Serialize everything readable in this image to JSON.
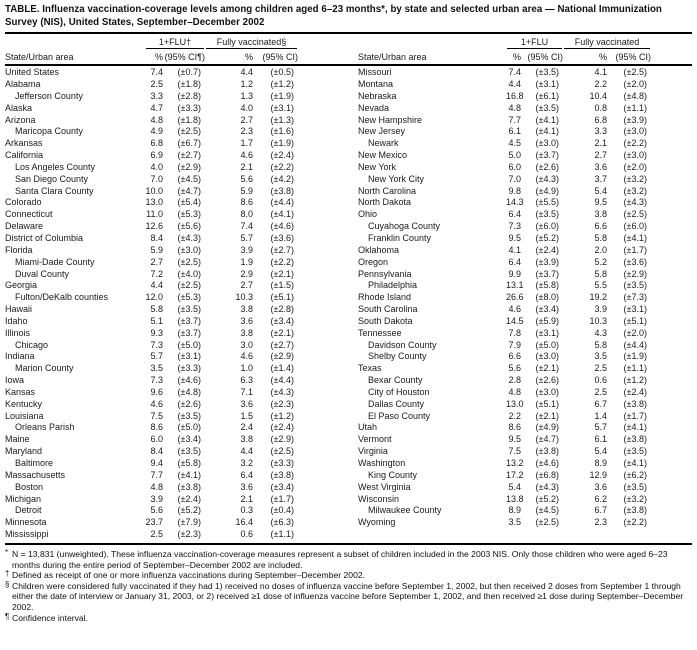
{
  "title": "TABLE. Influenza vaccination-coverage levels among children aged 6–23 months*, by state and selected urban area — National Immunization Survey (NIS), United States, September–December 2002",
  "left_table": {
    "group_flu": "1+FLU†",
    "group_fully": "Fully vaccinated§",
    "col_state": "State/Urban area",
    "col_pct": "%",
    "col_ci_flu": "(95% CI¶)",
    "col_ci_fully": "(95% CI)"
  },
  "right_table": {
    "group_flu": "1+FLU",
    "group_fully": "Fully vaccinated",
    "col_state": "State/Urban area",
    "col_pct": "%",
    "col_ci_flu": "(95% CI)",
    "col_ci_fully": "(95% CI)"
  },
  "left_rows": [
    {
      "area": "United States",
      "indent": false,
      "flu_pct": "7.4",
      "flu_ci": "(±0.7)",
      "full_pct": "4.4",
      "full_ci": "(±0.5)"
    },
    {
      "area": "Alabama",
      "indent": false,
      "flu_pct": "2.5",
      "flu_ci": "(±1.8)",
      "full_pct": "1.2",
      "full_ci": "(±1.2)"
    },
    {
      "area": "Jefferson County",
      "indent": true,
      "flu_pct": "3.3",
      "flu_ci": "(±2.8)",
      "full_pct": "1.3",
      "full_ci": "(±1.9)"
    },
    {
      "area": "Alaska",
      "indent": false,
      "flu_pct": "4.7",
      "flu_ci": "(±3.3)",
      "full_pct": "4.0",
      "full_ci": "(±3.1)"
    },
    {
      "area": "Arizona",
      "indent": false,
      "flu_pct": "4.8",
      "flu_ci": "(±1.8)",
      "full_pct": "2.7",
      "full_ci": "(±1.3)"
    },
    {
      "area": "Maricopa County",
      "indent": true,
      "flu_pct": "4.9",
      "flu_ci": "(±2.5)",
      "full_pct": "2.3",
      "full_ci": "(±1.6)"
    },
    {
      "area": "Arkansas",
      "indent": false,
      "flu_pct": "6.8",
      "flu_ci": "(±6.7)",
      "full_pct": "1.7",
      "full_ci": "(±1.9)"
    },
    {
      "area": "California",
      "indent": false,
      "flu_pct": "6.9",
      "flu_ci": "(±2.7)",
      "full_pct": "4.6",
      "full_ci": "(±2.4)"
    },
    {
      "area": "Los Angeles County",
      "indent": true,
      "flu_pct": "4.0",
      "flu_ci": "(±2.9)",
      "full_pct": "2.1",
      "full_ci": "(±2.2)"
    },
    {
      "area": "San Diego County",
      "indent": true,
      "flu_pct": "7.0",
      "flu_ci": "(±4.5)",
      "full_pct": "5.6",
      "full_ci": "(±4.2)"
    },
    {
      "area": "Santa Clara County",
      "indent": true,
      "flu_pct": "10.0",
      "flu_ci": "(±4.7)",
      "full_pct": "5.9",
      "full_ci": "(±3.8)"
    },
    {
      "area": "Colorado",
      "indent": false,
      "flu_pct": "13.0",
      "flu_ci": "(±5.4)",
      "full_pct": "8.6",
      "full_ci": "(±4.4)"
    },
    {
      "area": "Connecticut",
      "indent": false,
      "flu_pct": "11.0",
      "flu_ci": "(±5.3)",
      "full_pct": "8.0",
      "full_ci": "(±4.1)"
    },
    {
      "area": "Delaware",
      "indent": false,
      "flu_pct": "12.6",
      "flu_ci": "(±5.6)",
      "full_pct": "7.4",
      "full_ci": "(±4.6)"
    },
    {
      "area": "District of Columbia",
      "indent": false,
      "flu_pct": "8.4",
      "flu_ci": "(±4.3)",
      "full_pct": "5.7",
      "full_ci": "(±3.6)"
    },
    {
      "area": "Florida",
      "indent": false,
      "flu_pct": "5.9",
      "flu_ci": "(±3.0)",
      "full_pct": "3.9",
      "full_ci": "(±2.7)"
    },
    {
      "area": "Miami-Dade County",
      "indent": true,
      "flu_pct": "2.7",
      "flu_ci": "(±2.5)",
      "full_pct": "1.9",
      "full_ci": "(±2.2)"
    },
    {
      "area": "Duval County",
      "indent": true,
      "flu_pct": "7.2",
      "flu_ci": "(±4.0)",
      "full_pct": "2.9",
      "full_ci": "(±2.1)"
    },
    {
      "area": "Georgia",
      "indent": false,
      "flu_pct": "4.4",
      "flu_ci": "(±2.5)",
      "full_pct": "2.7",
      "full_ci": "(±1.5)"
    },
    {
      "area": "Fulton/DeKalb counties",
      "indent": true,
      "flu_pct": "12.0",
      "flu_ci": "(±5.3)",
      "full_pct": "10.3",
      "full_ci": "(±5.1)"
    },
    {
      "area": "Hawaii",
      "indent": false,
      "flu_pct": "5.8",
      "flu_ci": "(±3.5)",
      "full_pct": "3.8",
      "full_ci": "(±2.8)"
    },
    {
      "area": "Idaho",
      "indent": false,
      "flu_pct": "5.1",
      "flu_ci": "(±3.7)",
      "full_pct": "3.6",
      "full_ci": "(±3.4)"
    },
    {
      "area": "Illinois",
      "indent": false,
      "flu_pct": "9.3",
      "flu_ci": "(±3.7)",
      "full_pct": "3.8",
      "full_ci": "(±2.1)"
    },
    {
      "area": "Chicago",
      "indent": true,
      "flu_pct": "7.3",
      "flu_ci": "(±5.0)",
      "full_pct": "3.0",
      "full_ci": "(±2.7)"
    },
    {
      "area": "Indiana",
      "indent": false,
      "flu_pct": "5.7",
      "flu_ci": "(±3.1)",
      "full_pct": "4.6",
      "full_ci": "(±2.9)"
    },
    {
      "area": "Marion County",
      "indent": true,
      "flu_pct": "3.5",
      "flu_ci": "(±3.3)",
      "full_pct": "1.0",
      "full_ci": "(±1.4)"
    },
    {
      "area": "Iowa",
      "indent": false,
      "flu_pct": "7.3",
      "flu_ci": "(±4.6)",
      "full_pct": "6.3",
      "full_ci": "(±4.4)"
    },
    {
      "area": "Kansas",
      "indent": false,
      "flu_pct": "9.6",
      "flu_ci": "(±4.8)",
      "full_pct": "7.1",
      "full_ci": "(±4.3)"
    },
    {
      "area": "Kentucky",
      "indent": false,
      "flu_pct": "4.6",
      "flu_ci": "(±2.6)",
      "full_pct": "3.6",
      "full_ci": "(±2.3)"
    },
    {
      "area": "Louisiana",
      "indent": false,
      "flu_pct": "7.5",
      "flu_ci": "(±3.5)",
      "full_pct": "1.5",
      "full_ci": "(±1.2)"
    },
    {
      "area": "Orleans Parish",
      "indent": true,
      "flu_pct": "8.6",
      "flu_ci": "(±5.0)",
      "full_pct": "2.4",
      "full_ci": "(±2.4)"
    },
    {
      "area": "Maine",
      "indent": false,
      "flu_pct": "6.0",
      "flu_ci": "(±3.4)",
      "full_pct": "3.8",
      "full_ci": "(±2.9)"
    },
    {
      "area": "Maryland",
      "indent": false,
      "flu_pct": "8.4",
      "flu_ci": "(±3.5)",
      "full_pct": "4.4",
      "full_ci": "(±2.5)"
    },
    {
      "area": "Baltimore",
      "indent": true,
      "flu_pct": "9.4",
      "flu_ci": "(±5.8)",
      "full_pct": "3.2",
      "full_ci": "(±3.3)"
    },
    {
      "area": "Massachusetts",
      "indent": false,
      "flu_pct": "7.7",
      "flu_ci": "(±4.1)",
      "full_pct": "6.4",
      "full_ci": "(±3.8)"
    },
    {
      "area": "Boston",
      "indent": true,
      "flu_pct": "4.8",
      "flu_ci": "(±3.8)",
      "full_pct": "3.6",
      "full_ci": "(±3.4)"
    },
    {
      "area": "Michigan",
      "indent": false,
      "flu_pct": "3.9",
      "flu_ci": "(±2.4)",
      "full_pct": "2.1",
      "full_ci": "(±1.7)"
    },
    {
      "area": "Detroit",
      "indent": true,
      "flu_pct": "5.6",
      "flu_ci": "(±5.2)",
      "full_pct": "0.3",
      "full_ci": "(±0.4)"
    },
    {
      "area": "Minnesota",
      "indent": false,
      "flu_pct": "23.7",
      "flu_ci": "(±7.9)",
      "full_pct": "16.4",
      "full_ci": "(±6.3)"
    },
    {
      "area": "Mississippi",
      "indent": false,
      "flu_pct": "2.5",
      "flu_ci": "(±2.3)",
      "full_pct": "0.6",
      "full_ci": "(±1.1)"
    }
  ],
  "right_rows": [
    {
      "area": "Missouri",
      "indent": false,
      "flu_pct": "7.4",
      "flu_ci": "(±3.5)",
      "full_pct": "4.1",
      "full_ci": "(±2.5)"
    },
    {
      "area": "Montana",
      "indent": false,
      "flu_pct": "4.4",
      "flu_ci": "(±3.1)",
      "full_pct": "2.2",
      "full_ci": "(±2.0)"
    },
    {
      "area": "Nebraska",
      "indent": false,
      "flu_pct": "16.8",
      "flu_ci": "(±6.1)",
      "full_pct": "10.4",
      "full_ci": "(±4.8)"
    },
    {
      "area": "Nevada",
      "indent": false,
      "flu_pct": "4.8",
      "flu_ci": "(±3.5)",
      "full_pct": "0.8",
      "full_ci": "(±1.1)"
    },
    {
      "area": "New Hampshire",
      "indent": false,
      "flu_pct": "7.7",
      "flu_ci": "(±4.1)",
      "full_pct": "6.8",
      "full_ci": "(±3.9)"
    },
    {
      "area": "New Jersey",
      "indent": false,
      "flu_pct": "6.1",
      "flu_ci": "(±4.1)",
      "full_pct": "3.3",
      "full_ci": "(±3.0)"
    },
    {
      "area": "Newark",
      "indent": true,
      "flu_pct": "4.5",
      "flu_ci": "(±3.0)",
      "full_pct": "2.1",
      "full_ci": "(±2.2)"
    },
    {
      "area": "New Mexico",
      "indent": false,
      "flu_pct": "5.0",
      "flu_ci": "(±3.7)",
      "full_pct": "2.7",
      "full_ci": "(±3.0)"
    },
    {
      "area": "New York",
      "indent": false,
      "flu_pct": "6.0",
      "flu_ci": "(±2.6)",
      "full_pct": "3.6",
      "full_ci": "(±2.0)"
    },
    {
      "area": "New York City",
      "indent": true,
      "flu_pct": "7.0",
      "flu_ci": "(±4.3)",
      "full_pct": "3.7",
      "full_ci": "(±3.2)"
    },
    {
      "area": "North Carolina",
      "indent": false,
      "flu_pct": "9.8",
      "flu_ci": "(±4.9)",
      "full_pct": "5.4",
      "full_ci": "(±3.2)"
    },
    {
      "area": "North Dakota",
      "indent": false,
      "flu_pct": "14.3",
      "flu_ci": "(±5.5)",
      "full_pct": "9.5",
      "full_ci": "(±4.3)"
    },
    {
      "area": "Ohio",
      "indent": false,
      "flu_pct": "6.4",
      "flu_ci": "(±3.5)",
      "full_pct": "3.8",
      "full_ci": "(±2.5)"
    },
    {
      "area": "Cuyahoga County",
      "indent": true,
      "flu_pct": "7.3",
      "flu_ci": "(±6.0)",
      "full_pct": "6.6",
      "full_ci": "(±6.0)"
    },
    {
      "area": "Franklin County",
      "indent": true,
      "flu_pct": "9.5",
      "flu_ci": "(±5.2)",
      "full_pct": "5.8",
      "full_ci": "(±4.1)"
    },
    {
      "area": "Oklahoma",
      "indent": false,
      "flu_pct": "4.1",
      "flu_ci": "(±2.4)",
      "full_pct": "2.0",
      "full_ci": "(±1.7)"
    },
    {
      "area": "Oregon",
      "indent": false,
      "flu_pct": "6.4",
      "flu_ci": "(±3.9)",
      "full_pct": "5.2",
      "full_ci": "(±3.6)"
    },
    {
      "area": "Pennsylvania",
      "indent": false,
      "flu_pct": "9.9",
      "flu_ci": "(±3.7)",
      "full_pct": "5.8",
      "full_ci": "(±2.9)"
    },
    {
      "area": "Philadelphia",
      "indent": true,
      "flu_pct": "13.1",
      "flu_ci": "(±5.8)",
      "full_pct": "5.5",
      "full_ci": "(±3.5)"
    },
    {
      "area": "Rhode Island",
      "indent": false,
      "flu_pct": "26.6",
      "flu_ci": "(±8.0)",
      "full_pct": "19.2",
      "full_ci": "(±7.3)"
    },
    {
      "area": "South Carolina",
      "indent": false,
      "flu_pct": "4.6",
      "flu_ci": "(±3.4)",
      "full_pct": "3.9",
      "full_ci": "(±3.1)"
    },
    {
      "area": "South Dakota",
      "indent": false,
      "flu_pct": "14.5",
      "flu_ci": "(±5.9)",
      "full_pct": "10.3",
      "full_ci": "(±5.1)"
    },
    {
      "area": "Tennessee",
      "indent": false,
      "flu_pct": "7.8",
      "flu_ci": "(±3.1)",
      "full_pct": "4.3",
      "full_ci": "(±2.0)"
    },
    {
      "area": "Davidson County",
      "indent": true,
      "flu_pct": "7.9",
      "flu_ci": "(±5.0)",
      "full_pct": "5.8",
      "full_ci": "(±4.4)"
    },
    {
      "area": "Shelby County",
      "indent": true,
      "flu_pct": "6.6",
      "flu_ci": "(±3.0)",
      "full_pct": "3.5",
      "full_ci": "(±1.9)"
    },
    {
      "area": "Texas",
      "indent": false,
      "flu_pct": "5.6",
      "flu_ci": "(±2.1)",
      "full_pct": "2.5",
      "full_ci": "(±1.1)"
    },
    {
      "area": "Bexar County",
      "indent": true,
      "flu_pct": "2.8",
      "flu_ci": "(±2.6)",
      "full_pct": "0.6",
      "full_ci": "(±1.2)"
    },
    {
      "area": "City of Houston",
      "indent": true,
      "flu_pct": "4.8",
      "flu_ci": "(±3.0)",
      "full_pct": "2.5",
      "full_ci": "(±2.4)"
    },
    {
      "area": "Dallas County",
      "indent": true,
      "flu_pct": "13.0",
      "flu_ci": "(±5.1)",
      "full_pct": "6.7",
      "full_ci": "(±3.8)"
    },
    {
      "area": "El Paso County",
      "indent": true,
      "flu_pct": "2.2",
      "flu_ci": "(±2.1)",
      "full_pct": "1.4",
      "full_ci": "(±1.7)"
    },
    {
      "area": "Utah",
      "indent": false,
      "flu_pct": "8.6",
      "flu_ci": "(±4.9)",
      "full_pct": "5.7",
      "full_ci": "(±4.1)"
    },
    {
      "area": "Vermont",
      "indent": false,
      "flu_pct": "9.5",
      "flu_ci": "(±4.7)",
      "full_pct": "6.1",
      "full_ci": "(±3.8)"
    },
    {
      "area": "Virginia",
      "indent": false,
      "flu_pct": "7.5",
      "flu_ci": "(±3.8)",
      "full_pct": "5.4",
      "full_ci": "(±3.5)"
    },
    {
      "area": "Washington",
      "indent": false,
      "flu_pct": "13.2",
      "flu_ci": "(±4.6)",
      "full_pct": "8.9",
      "full_ci": "(±4.1)"
    },
    {
      "area": "King County",
      "indent": true,
      "flu_pct": "17.2",
      "flu_ci": "(±6.8)",
      "full_pct": "12.9",
      "full_ci": "(±6.2)"
    },
    {
      "area": "West Virginia",
      "indent": false,
      "flu_pct": "5.4",
      "flu_ci": "(±4.3)",
      "full_pct": "3.6",
      "full_ci": "(±3.5)"
    },
    {
      "area": "Wisconsin",
      "indent": false,
      "flu_pct": "13.8",
      "flu_ci": "(±5.2)",
      "full_pct": "6.2",
      "full_ci": "(±3.2)"
    },
    {
      "area": "Milwaukee County",
      "indent": true,
      "flu_pct": "8.9",
      "flu_ci": "(±4.5)",
      "full_pct": "6.7",
      "full_ci": "(±3.8)"
    },
    {
      "area": "Wyoming",
      "indent": false,
      "flu_pct": "3.5",
      "flu_ci": "(±2.5)",
      "full_pct": "2.3",
      "full_ci": "(±2.2)"
    }
  ],
  "footnotes": [
    {
      "marker": "*",
      "text": "N = 13,831 (unweighted). These influenza vaccination-coverage measures represent a subset of children included in the 2003 NIS. Only those children who were aged 6–23 months during the entire period of September–December 2002 are included."
    },
    {
      "marker": "†",
      "text": "Defined as receipt of one or more influenza vaccinations during September–December 2002."
    },
    {
      "marker": "§",
      "text": "Children were considered fully vaccinated if they had 1) received no doses of influenza vaccine before September 1, 2002, but then received 2 doses from September 1 through either the date of interview or January 31, 2003, or 2) received ≥1 dose of influenza vaccine before September 1, 2002, and then received ≥1 dose during September–December 2002."
    },
    {
      "marker": "¶",
      "text": "Confidence interval."
    }
  ]
}
